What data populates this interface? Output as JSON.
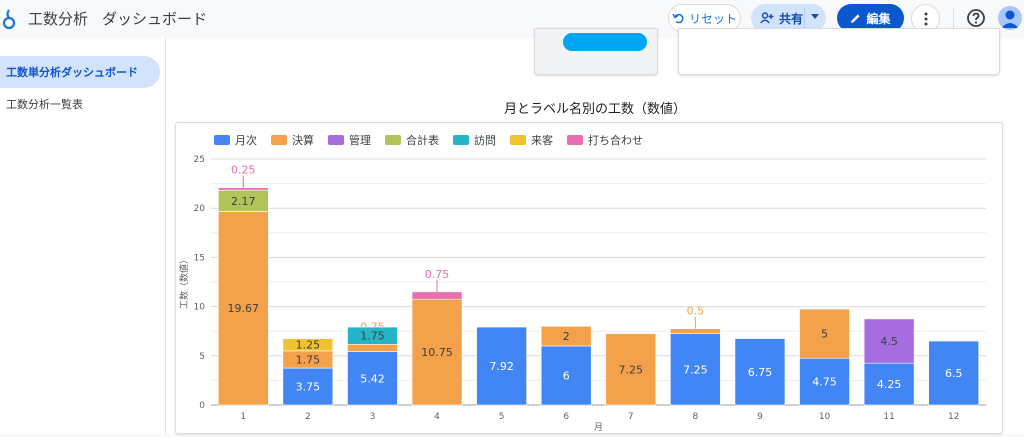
{
  "header": {
    "title": "工数分析",
    "subtitle": "ダッシュボード",
    "reset_label": "リセット",
    "share_label": "共有",
    "edit_label": "編集"
  },
  "sidebar": {
    "items": [
      {
        "label": "工数単分析ダッシュボード",
        "active": true
      },
      {
        "label": "工数分析一覧表",
        "active": false
      }
    ]
  },
  "colors": {
    "月次": "#4285f4",
    "決算": "#f4a14b",
    "管理": "#a66de0",
    "合計表": "#b0c45a",
    "訪問": "#25b5c6",
    "来客": "#f0c232",
    "打ち合わせ": "#e76fb2"
  },
  "chart_data": {
    "type": "bar",
    "stacked": true,
    "title": "月とラベル名別の工数（数値）",
    "xlabel": "月",
    "ylabel": "工数（数値）",
    "ylim": [
      0,
      25
    ],
    "yticks": [
      0,
      5,
      10,
      15,
      20,
      25
    ],
    "grid": true,
    "legend_position": "top-left",
    "categories": [
      "1",
      "2",
      "3",
      "4",
      "5",
      "6",
      "7",
      "8",
      "9",
      "10",
      "11",
      "12"
    ],
    "series": [
      {
        "name": "月次",
        "values": [
          0,
          3.75,
          5.42,
          0,
          7.92,
          6,
          0,
          7.25,
          6.75,
          4.75,
          4.25,
          6.5
        ]
      },
      {
        "name": "決算",
        "values": [
          19.67,
          1.75,
          0.75,
          10.75,
          0,
          2,
          7.25,
          0.5,
          0,
          5,
          0,
          0
        ]
      },
      {
        "name": "管理",
        "values": [
          0,
          0,
          0,
          0,
          0,
          0,
          0,
          0,
          0,
          0,
          4.5,
          0
        ]
      },
      {
        "name": "合計表",
        "values": [
          2.17,
          0,
          0,
          0,
          0,
          0,
          0,
          0,
          0,
          0,
          0,
          0
        ]
      },
      {
        "name": "訪問",
        "values": [
          0,
          0,
          1.75,
          0,
          0,
          0,
          0,
          0,
          0,
          0,
          0,
          0
        ]
      },
      {
        "name": "来客",
        "values": [
          0,
          1.25,
          0,
          0,
          0,
          0,
          0,
          0,
          0,
          0,
          0,
          0
        ]
      },
      {
        "name": "打ち合わせ",
        "values": [
          0.25,
          0,
          0,
          0.75,
          0,
          0,
          0,
          0,
          0,
          0,
          0,
          0
        ]
      }
    ]
  }
}
